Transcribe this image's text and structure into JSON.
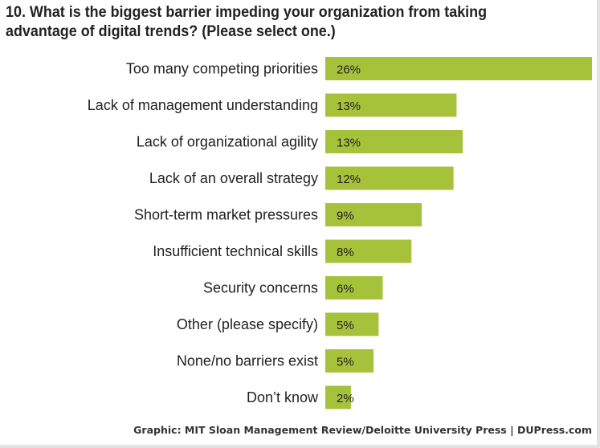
{
  "chart_data": {
    "type": "bar",
    "orientation": "horizontal",
    "title": "10. What is the biggest barrier impeding your organization from taking advantage of digital trends? (Please select one.)",
    "categories": [
      "Too many competing priorities",
      "Lack of management understanding",
      "Lack of organizational agility",
      "Lack of an overall strategy",
      "Short-term market pressures",
      "Insufficient technical skills",
      "Security concerns",
      "Other (please specify)",
      "None/no barriers exist",
      "Don’t know"
    ],
    "values": [
      26,
      12.8,
      13.4,
      12.5,
      9.4,
      8.4,
      5.6,
      5.2,
      4.7,
      2.5
    ],
    "data_labels": [
      "26%",
      "13%",
      "13%",
      "12%",
      "9%",
      "8%",
      "6%",
      "5%",
      "5%",
      "2%"
    ],
    "xlim": [
      0,
      26
    ],
    "grid": false,
    "bar_color": "#a6c23b"
  },
  "source": "Graphic: MIT Sloan Management Review/Deloitte University Press  |  DUPress.com"
}
